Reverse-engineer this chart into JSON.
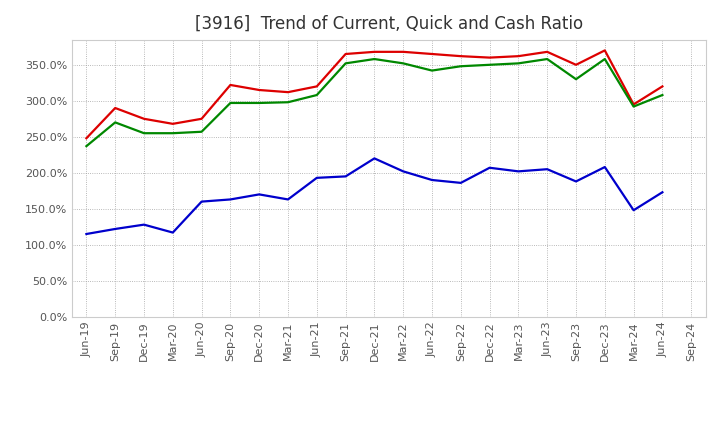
{
  "title": "[3916]  Trend of Current, Quick and Cash Ratio",
  "x_labels": [
    "Jun-19",
    "Sep-19",
    "Dec-19",
    "Mar-20",
    "Jun-20",
    "Sep-20",
    "Dec-20",
    "Mar-21",
    "Jun-21",
    "Sep-21",
    "Dec-21",
    "Mar-22",
    "Jun-22",
    "Sep-22",
    "Dec-22",
    "Mar-23",
    "Jun-23",
    "Sep-23",
    "Dec-23",
    "Mar-24",
    "Jun-24",
    "Sep-24"
  ],
  "current_ratio": [
    248,
    290,
    275,
    268,
    275,
    322,
    315,
    312,
    320,
    365,
    368,
    368,
    365,
    362,
    360,
    362,
    368,
    350,
    370,
    295,
    320,
    null
  ],
  "quick_ratio": [
    237,
    270,
    255,
    255,
    257,
    297,
    297,
    298,
    308,
    352,
    358,
    352,
    342,
    348,
    350,
    352,
    358,
    330,
    358,
    292,
    308,
    null
  ],
  "cash_ratio": [
    115,
    122,
    128,
    117,
    160,
    163,
    170,
    163,
    193,
    195,
    220,
    202,
    190,
    186,
    207,
    202,
    205,
    188,
    208,
    148,
    173,
    null
  ],
  "colors": {
    "current": "#dd0000",
    "quick": "#008800",
    "cash": "#0000cc"
  },
  "ylim": [
    0,
    385
  ],
  "yticks": [
    0,
    50,
    100,
    150,
    200,
    250,
    300,
    350
  ],
  "bg_color": "#ffffff",
  "plot_bg": "#ffffff",
  "grid_color": "#999999",
  "line_width": 1.6,
  "title_fontsize": 12,
  "title_color": "#333333",
  "legend_fontsize": 9.5,
  "tick_fontsize": 8,
  "tick_color": "#555555"
}
